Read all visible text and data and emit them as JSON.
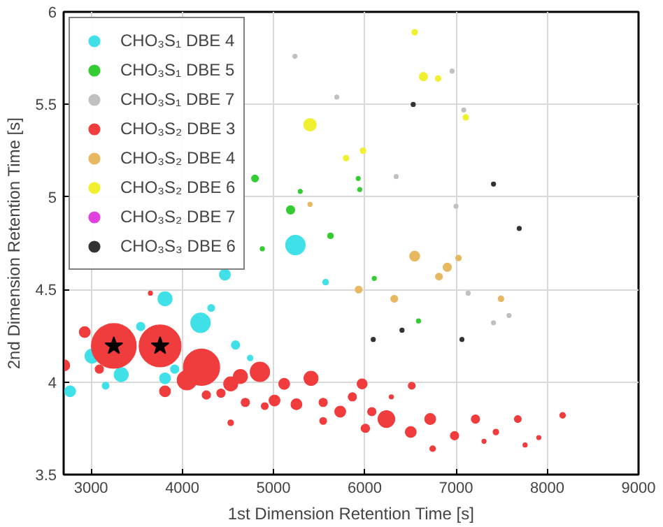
{
  "chart_data": {
    "type": "bubble",
    "xlabel": "1st Dimension Retention Time [s]",
    "ylabel": "2nd Dimension Retention Time [s]",
    "xlim": [
      2700,
      9000
    ],
    "xticks": [
      3000,
      4000,
      5000,
      6000,
      7000,
      8000,
      9000
    ],
    "ylim": [
      3.5,
      6
    ],
    "yticks": [
      3.5,
      4,
      4.5,
      5,
      5.5,
      6
    ],
    "grid": true,
    "legend": "top left",
    "series": [
      {
        "name": "CHO₃S₁ DBE 4",
        "color": "#40e0e8",
        "x": [
          3811,
          4467,
          4200,
          3011,
          3331,
          2771,
          3811,
          3544,
          4584,
          3160,
          4317,
          3917,
          4744,
          5571,
          5240
        ],
        "values": [
          4.45,
          4.58,
          4.32,
          4.14,
          4.04,
          3.95,
          4.02,
          4.3,
          4.2,
          3.98,
          4.4,
          4.07,
          4.13,
          4.54,
          4.74
        ],
        "sizes": [
          0.1,
          0.06,
          0.19,
          0.1,
          0.1,
          0.06,
          0.06,
          0.035,
          0.035,
          0.024,
          0.024,
          0.035,
          0.016,
          0.016,
          0.19
        ]
      },
      {
        "name": "CHO₃S₁ DBE 5",
        "color": "#33cc33",
        "x": [
          4797,
          5187,
          5293,
          5624,
          4877,
          5928,
          5944,
          6104,
          6589
        ],
        "values": [
          5.1,
          4.93,
          5.03,
          4.79,
          4.72,
          5.1,
          5.04,
          4.56,
          4.33
        ],
        "sizes": [
          0.024,
          0.035,
          0.009,
          0.016,
          0.009,
          0.009,
          0.009,
          0.009,
          0.009
        ]
      },
      {
        "name": "CHO₃S₁ DBE 7",
        "color": "#c0c0c0",
        "x": [
          5235,
          5693,
          7085,
          6957,
          7000,
          6344,
          7133,
          7581,
          7411
        ],
        "values": [
          5.76,
          5.54,
          5.47,
          5.68,
          4.95,
          5.11,
          4.48,
          4.36,
          4.32
        ],
        "sizes": [
          0.009,
          0.009,
          0.009,
          0.009,
          0.009,
          0.009,
          0.009,
          0.009,
          0.009
        ]
      },
      {
        "name": "CHO₃S₂ DBE 3",
        "color": "#f03c3c",
        "x": [
          3250,
          3757,
          4211,
          4051,
          4851,
          5411,
          5971,
          5731,
          5011,
          5251,
          4531,
          4637,
          2707,
          2931,
          3811,
          3091,
          3651,
          4264,
          4424,
          5117,
          5544,
          5864,
          6077,
          4691,
          4531,
          5544,
          4904,
          5997,
          6515,
          6237,
          6717,
          6504,
          7213,
          7677,
          8168,
          6984,
          6008,
          7437,
          7907,
          6744,
          7757,
          7307,
          6291
        ],
        "values": [
          4.195,
          4.195,
          4.08,
          4.01,
          4.055,
          4.02,
          3.99,
          3.84,
          3.9,
          3.88,
          3.99,
          4.03,
          4.09,
          4.27,
          3.95,
          4.07,
          4.48,
          3.93,
          3.94,
          3.99,
          3.89,
          3.92,
          3.84,
          3.89,
          3.78,
          3.79,
          3.87,
          3.75,
          3.98,
          3.8,
          3.8,
          3.73,
          3.8,
          3.8,
          3.82,
          3.71,
          3.75,
          3.73,
          3.7,
          3.64,
          3.66,
          3.68,
          3.92
        ],
        "sizes": [
          1,
          0.88,
          0.66,
          0.19,
          0.19,
          0.1,
          0.05,
          0.06,
          0.06,
          0.06,
          0.1,
          0.1,
          0.06,
          0.06,
          0.06,
          0.035,
          0.009,
          0.035,
          0.035,
          0.06,
          0.035,
          0.035,
          0.035,
          0.035,
          0.016,
          0.024,
          0.024,
          0.024,
          0.024,
          0.14,
          0.06,
          0.06,
          0.035,
          0.024,
          0.016,
          0.035,
          0.035,
          0.016,
          0.009,
          0.016,
          0.009,
          0.009,
          0.009
        ]
      },
      {
        "name": "CHO₃S₂ DBE 4",
        "color": "#e8b860",
        "x": [
          5400,
          6547,
          6904,
          7027,
          6813,
          5933,
          6323,
          7493
        ],
        "values": [
          4.96,
          4.68,
          4.62,
          4.67,
          4.57,
          4.5,
          4.45,
          4.45
        ],
        "sizes": [
          0.009,
          0.05,
          0.035,
          0.016,
          0.024,
          0.024,
          0.024,
          0.016
        ]
      },
      {
        "name": "CHO₃S₂ DBE 6",
        "color": "#f0f030",
        "x": [
          5400,
          5795,
          5981,
          6547,
          6643,
          6803,
          7107
        ],
        "values": [
          5.39,
          5.21,
          5.25,
          5.89,
          5.65,
          5.64,
          5.43
        ],
        "sizes": [
          0.08,
          0.016,
          0.016,
          0.016,
          0.035,
          0.016,
          0.016
        ]
      },
      {
        "name": "CHO₃S₂ DBE 7",
        "color": "#e040e0"
      },
      {
        "name": "CHO₃S₃ DBE 6",
        "color": "#333333",
        "x": [
          6531,
          7411,
          7693,
          6093,
          7064,
          6408
        ],
        "values": [
          5.5,
          5.07,
          4.83,
          4.23,
          4.23,
          4.28
        ],
        "sizes": [
          0.009,
          0.009,
          0.009,
          0.009,
          0.009,
          0.009
        ]
      },
      {
        "type": "scatter",
        "marker": "star",
        "color": "#000000",
        "x": [
          3250,
          3757
        ],
        "values": [
          4.195,
          4.195
        ]
      }
    ]
  }
}
